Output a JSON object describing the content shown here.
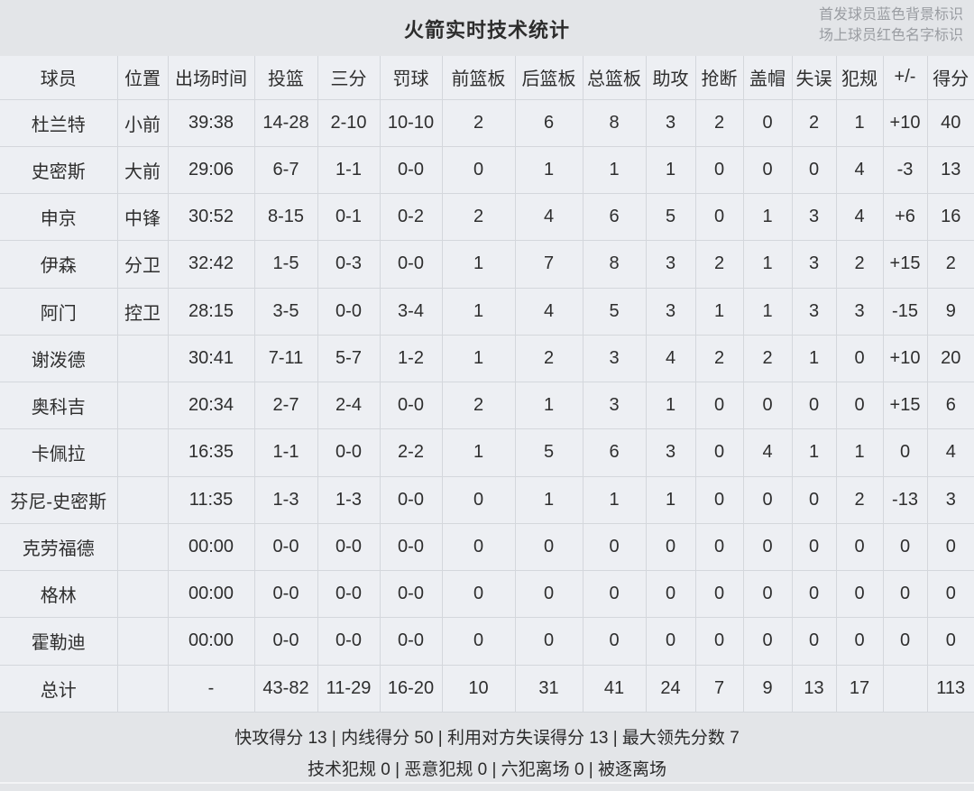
{
  "header": {
    "title": "火箭实时技术统计",
    "legend_line1": "首发球员蓝色背景标识",
    "legend_line2": "场上球员红色名字标识"
  },
  "colors": {
    "header_blue": "#55a1d9",
    "starter_bg": "#c9dcec",
    "on_court_red": "#df372e",
    "row_bg": "#edeff3",
    "page_bg": "#e3e5e8"
  },
  "table": {
    "columns": [
      "球员",
      "位置",
      "出场时间",
      "投篮",
      "三分",
      "罚球",
      "前篮板",
      "后篮板",
      "总篮板",
      "助攻",
      "抢断",
      "盖帽",
      "失误",
      "犯规",
      "+/-",
      "得分"
    ],
    "rows": [
      {
        "starter": true,
        "on_court": true,
        "cells": [
          "杜兰特",
          "小前",
          "39:38",
          "14-28",
          "2-10",
          "10-10",
          "2",
          "6",
          "8",
          "3",
          "2",
          "0",
          "2",
          "1",
          "+10",
          "40"
        ]
      },
      {
        "starter": true,
        "on_court": false,
        "cells": [
          "史密斯",
          "大前",
          "29:06",
          "6-7",
          "1-1",
          "0-0",
          "0",
          "1",
          "1",
          "1",
          "0",
          "0",
          "0",
          "4",
          "-3",
          "13"
        ]
      },
      {
        "starter": true,
        "on_court": true,
        "cells": [
          "申京",
          "中锋",
          "30:52",
          "8-15",
          "0-1",
          "0-2",
          "2",
          "4",
          "6",
          "5",
          "0",
          "1",
          "3",
          "4",
          "+6",
          "16"
        ]
      },
      {
        "starter": true,
        "on_court": true,
        "cells": [
          "伊森",
          "分卫",
          "32:42",
          "1-5",
          "0-3",
          "0-0",
          "1",
          "7",
          "8",
          "3",
          "2",
          "1",
          "3",
          "2",
          "+15",
          "2"
        ]
      },
      {
        "starter": true,
        "on_court": false,
        "cells": [
          "阿门",
          "控卫",
          "28:15",
          "3-5",
          "0-0",
          "3-4",
          "1",
          "4",
          "5",
          "3",
          "1",
          "1",
          "3",
          "3",
          "-15",
          "9"
        ]
      },
      {
        "starter": false,
        "on_court": true,
        "cells": [
          "谢泼德",
          "",
          "30:41",
          "7-11",
          "5-7",
          "1-2",
          "1",
          "2",
          "3",
          "4",
          "2",
          "2",
          "1",
          "0",
          "+10",
          "20"
        ]
      },
      {
        "starter": false,
        "on_court": true,
        "cells": [
          "奥科吉",
          "",
          "20:34",
          "2-7",
          "2-4",
          "0-0",
          "2",
          "1",
          "3",
          "1",
          "0",
          "0",
          "0",
          "0",
          "+15",
          "6"
        ]
      },
      {
        "starter": false,
        "on_court": false,
        "cells": [
          "卡佩拉",
          "",
          "16:35",
          "1-1",
          "0-0",
          "2-2",
          "1",
          "5",
          "6",
          "3",
          "0",
          "4",
          "1",
          "1",
          "0",
          "4"
        ]
      },
      {
        "starter": false,
        "on_court": false,
        "cells": [
          "芬尼-史密斯",
          "",
          "11:35",
          "1-3",
          "1-3",
          "0-0",
          "0",
          "1",
          "1",
          "1",
          "0",
          "0",
          "0",
          "2",
          "-13",
          "3"
        ]
      },
      {
        "starter": false,
        "on_court": false,
        "cells": [
          "克劳福德",
          "",
          "00:00",
          "0-0",
          "0-0",
          "0-0",
          "0",
          "0",
          "0",
          "0",
          "0",
          "0",
          "0",
          "0",
          "0",
          "0"
        ]
      },
      {
        "starter": false,
        "on_court": false,
        "cells": [
          "格林",
          "",
          "00:00",
          "0-0",
          "0-0",
          "0-0",
          "0",
          "0",
          "0",
          "0",
          "0",
          "0",
          "0",
          "0",
          "0",
          "0"
        ]
      },
      {
        "starter": false,
        "on_court": false,
        "cells": [
          "霍勒迪",
          "",
          "00:00",
          "0-0",
          "0-0",
          "0-0",
          "0",
          "0",
          "0",
          "0",
          "0",
          "0",
          "0",
          "0",
          "0",
          "0"
        ]
      }
    ],
    "total_row": {
      "cells": [
        "总计",
        "",
        "-",
        "43-82",
        "11-29",
        "16-20",
        "10",
        "31",
        "41",
        "24",
        "7",
        "9",
        "13",
        "17",
        "",
        "113"
      ]
    }
  },
  "footer": {
    "line1": "快攻得分 13 | 内线得分 50 | 利用对方失误得分 13 | 最大领先分数 7",
    "line2": "技术犯规 0 | 恶意犯规 0 | 六犯离场 0 | 被逐离场"
  }
}
